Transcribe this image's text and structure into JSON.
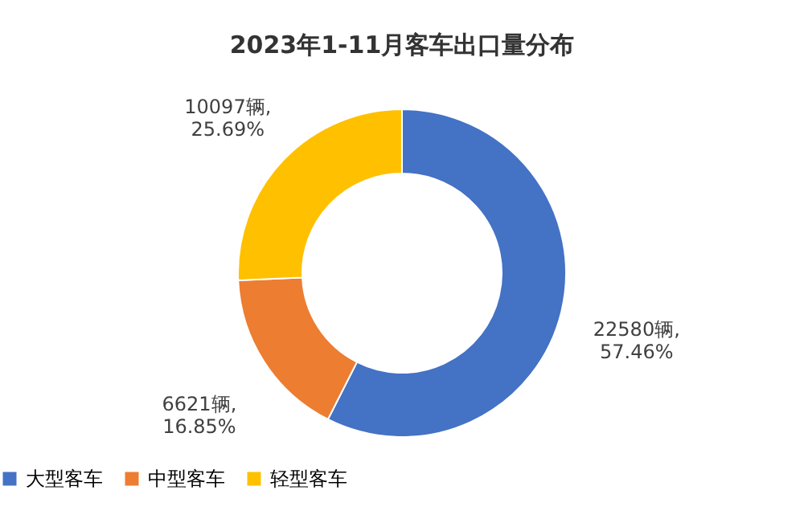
{
  "chart_data": {
    "type": "donut",
    "title": "2023年1-11月客车出口量分布",
    "categories": [
      "大型客车",
      "中型客车",
      "轻型客车"
    ],
    "values": [
      22580,
      6621,
      10097
    ],
    "colors": [
      "#4472c4",
      "#ed7d31",
      "#ffc000"
    ],
    "value_labels": [
      "22580辆,\n57.46%",
      "6621辆,\n16.85%",
      "10097辆,\n25.69%"
    ],
    "legend": "bottom"
  }
}
